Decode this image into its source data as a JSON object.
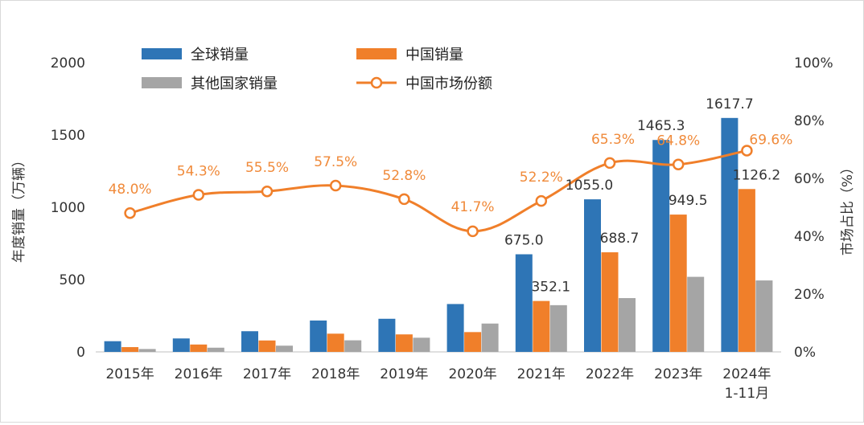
{
  "chart_data": {
    "type": "bar",
    "categories": [
      "2015年",
      "2016年",
      "2017年",
      "2018年",
      "2019年",
      "2020年",
      "2021年",
      "2022年",
      "2023年",
      "2024年\n1-11月"
    ],
    "series": [
      {
        "name": "全球销量",
        "kind": "bar",
        "axis": "left",
        "color": "#2E75B6",
        "values": [
          74,
          93,
          143,
          217,
          229,
          331,
          675.0,
          1055.0,
          1465.3,
          1617.7
        ],
        "labels": [
          "",
          "",
          "",
          "",
          "",
          "",
          "675.0",
          "1055.0",
          "1465.3",
          "1617.7"
        ]
      },
      {
        "name": "中国销量",
        "kind": "bar",
        "axis": "left",
        "color": "#F07F2A",
        "values": [
          33,
          51,
          79,
          126,
          121,
          137,
          352.1,
          688.7,
          949.5,
          1126.2
        ],
        "labels": [
          "",
          "",
          "",
          "",
          "",
          "",
          "352.1",
          "688.7",
          "949.5",
          "1126.2"
        ]
      },
      {
        "name": "其他国家销量",
        "kind": "bar",
        "axis": "left",
        "color": "#A5A5A5",
        "values": [
          20,
          29,
          43,
          80,
          98,
          196,
          323,
          372,
          519,
          494
        ],
        "labels": [
          "",
          "",
          "",
          "",
          "",
          "",
          "",
          "",
          "",
          ""
        ]
      },
      {
        "name": "中国市场份额",
        "kind": "line",
        "axis": "right",
        "color": "#F07F2A",
        "values": [
          48.0,
          54.3,
          55.5,
          57.5,
          52.8,
          41.7,
          52.2,
          65.3,
          64.8,
          69.6
        ],
        "labels": [
          "48.0%",
          "54.3%",
          "55.5%",
          "57.5%",
          "52.8%",
          "41.7%",
          "52.2%",
          "65.3%",
          "64.8%",
          "69.6%"
        ]
      }
    ],
    "ylabel": "年度销量（万辆）",
    "y2label": "市场占比（%）",
    "ylim": [
      0,
      2000
    ],
    "y2lim": [
      0,
      100
    ],
    "yticks": [
      "0",
      "500",
      "1000",
      "1500",
      "2000"
    ],
    "y2ticks": [
      "0%",
      "20%",
      "40%",
      "60%",
      "80%",
      "100%"
    ],
    "grid": false,
    "legend_position": "top"
  }
}
